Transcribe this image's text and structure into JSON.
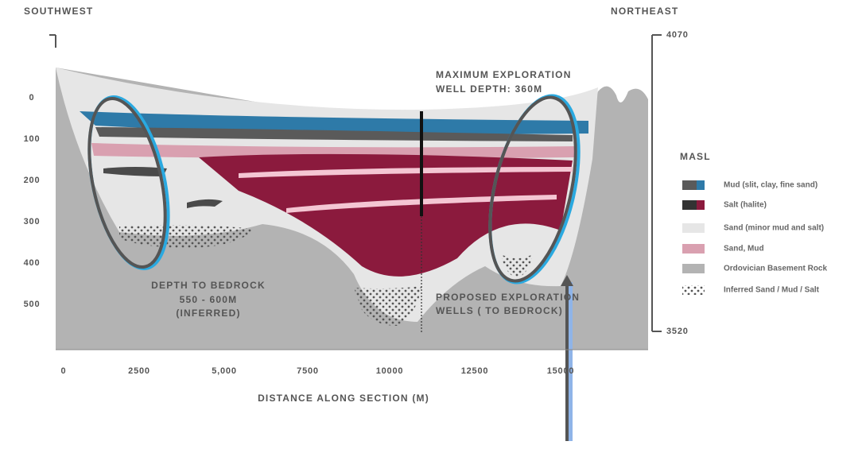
{
  "header": {
    "left": "SOUTHWEST",
    "right": "NORTHEAST"
  },
  "elevation": {
    "top": "4070",
    "bottom": "3520"
  },
  "depth_labels": [
    "0",
    "100",
    "200",
    "300",
    "400",
    "500"
  ],
  "x_axis": {
    "labels": [
      "0",
      "2500",
      "5,000",
      "7500",
      "10000",
      "12500",
      "15000"
    ],
    "title": "DISTANCE ALONG SECTION (M)"
  },
  "annotations": {
    "well": [
      "MAXIMUM EXPLORATION",
      "WELL DEPTH: 360M"
    ],
    "bedrock": [
      "DEPTH TO BEDROCK",
      "550 - 600M",
      "(INFERRED)"
    ],
    "proposed": [
      "PROPOSED EXPLORATION",
      "WELLS ( TO BEDROCK)"
    ]
  },
  "legend": {
    "title": "MASL",
    "items": [
      {
        "label": "Mud (slit, clay, fine sand)"
      },
      {
        "label": "Salt (halite)"
      },
      {
        "label": "Sand (minor mud and salt)"
      },
      {
        "label": "Sand, Mud"
      },
      {
        "label": "Ordovician Basement Rock"
      },
      {
        "label": "Inferred Sand / Mud / Salt"
      }
    ]
  }
}
